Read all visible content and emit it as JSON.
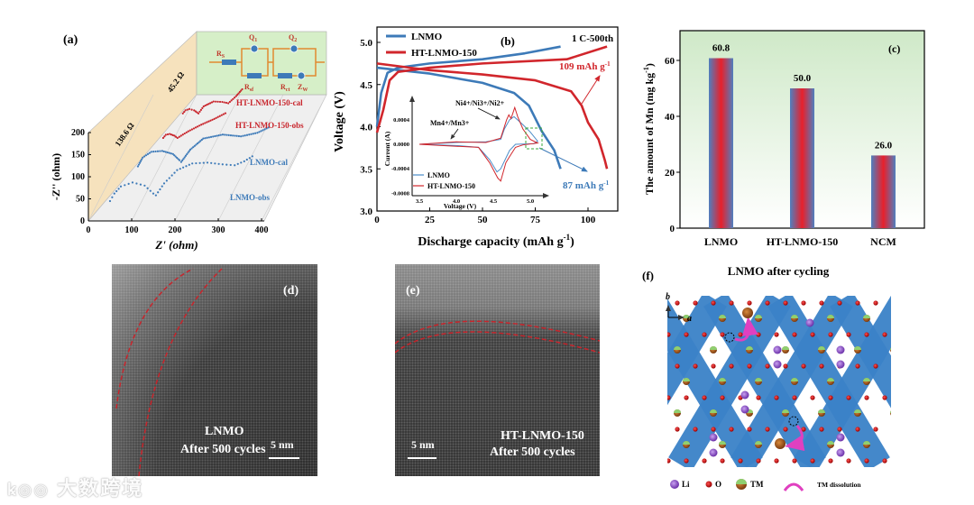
{
  "chart_data": [
    {
      "panel": "(a)",
      "type": "scatter",
      "title": "",
      "xlabel": "Z' (ohm)",
      "ylabel": "-Z'' (ohm)",
      "xlim": [
        0,
        400
      ],
      "ylim": [
        0,
        200
      ],
      "xticks": [
        "0",
        "100",
        "200",
        "300",
        "400"
      ],
      "yticks": [
        "0",
        "50",
        "100",
        "150",
        "200"
      ],
      "annotations": [
        "138.6 Ω",
        "45.2 Ω"
      ],
      "circuit": {
        "rs": {
          "main": "R",
          "sub": "S"
        },
        "q1": {
          "main": "Q",
          "sub": "1"
        },
        "rsf": {
          "main": "R",
          "sub": "sf"
        },
        "q2": {
          "main": "Q",
          "sub": "2"
        },
        "rct": {
          "main": "R",
          "sub": "ct"
        },
        "zw": {
          "main": "Z",
          "sub": "W"
        }
      },
      "series": [
        {
          "name": "LNMO-obs",
          "color": "#3d7ab8",
          "depth": 0,
          "points": [
            [
              50,
              45
            ],
            [
              60,
              62
            ],
            [
              75,
              78
            ],
            [
              102,
              87
            ],
            [
              130,
              80
            ],
            [
              150,
              62
            ],
            [
              156,
              58
            ],
            [
              175,
              85
            ],
            [
              205,
              115
            ],
            [
              240,
              130
            ],
            [
              275,
              132
            ],
            [
              310,
              128
            ],
            [
              338,
              126
            ],
            [
              360,
              135
            ],
            [
              385,
              150
            ]
          ]
        },
        {
          "name": "LNMO-cal",
          "color": "#3d7ab8",
          "depth": 1,
          "points": [
            [
              54,
              52
            ],
            [
              65,
              72
            ],
            [
              85,
              85
            ],
            [
              110,
              87
            ],
            [
              135,
              80
            ],
            [
              150,
              66
            ],
            [
              154,
              62
            ],
            [
              175,
              90
            ],
            [
              205,
              115
            ],
            [
              250,
              124
            ],
            [
              292,
              120
            ],
            [
              330,
              128
            ],
            [
              360,
              142
            ]
          ]
        },
        {
          "name": "HT-LNMO-150-obs",
          "color": "#c8242b",
          "depth": 2,
          "points": [
            [
              52,
              45
            ],
            [
              58,
              52
            ],
            [
              67,
              54
            ],
            [
              78,
              50
            ],
            [
              85,
              45
            ],
            [
              110,
              60
            ],
            [
              140,
              75
            ],
            [
              170,
              88
            ],
            [
              200,
              103
            ]
          ]
        },
        {
          "name": "HT-LNMO-150-cal",
          "color": "#c8242b",
          "depth": 3,
          "points": [
            [
              37,
              29
            ],
            [
              43,
              36
            ],
            [
              52,
              39
            ],
            [
              63,
              36
            ],
            [
              73,
              29
            ],
            [
              85,
              45
            ],
            [
              108,
              56
            ],
            [
              128,
              55
            ],
            [
              142,
              52
            ],
            [
              160,
              68
            ],
            [
              177,
              87
            ]
          ]
        }
      ]
    },
    {
      "panel": "(b)",
      "type": "line",
      "title": "1 C-500th",
      "xlabel": "Discharge capacity (mAh g",
      "xlabel_sup": "-1",
      "xlabel_end": ")",
      "ylabel": "Voltage (V)",
      "xlim": [
        0,
        112
      ],
      "ylim": [
        3.0,
        5.2
      ],
      "xticks": [
        "0",
        "25",
        "50",
        "75",
        "100"
      ],
      "yticks": [
        "3.0",
        "3.5",
        "4.0",
        "4.5",
        "5.0"
      ],
      "legend": [
        "LNMO",
        "HT-LNMO-150"
      ],
      "legend_position": "top-left",
      "annotations": {
        "ht_capacity": "109 mAh g",
        "lnmo_capacity": "87 mAh g",
        "sup": "-1"
      },
      "series": [
        {
          "name": "LNMO charge",
          "color": "#3d7ab8",
          "points": [
            [
              0,
              4.0
            ],
            [
              2,
              4.4
            ],
            [
              5,
              4.64
            ],
            [
              10,
              4.7
            ],
            [
              25,
              4.75
            ],
            [
              50,
              4.8
            ],
            [
              70,
              4.87
            ],
            [
              87,
              4.95
            ]
          ]
        },
        {
          "name": "LNMO discharge",
          "color": "#3d7ab8",
          "points": [
            [
              0,
              4.7
            ],
            [
              25,
              4.63
            ],
            [
              50,
              4.52
            ],
            [
              65,
              4.4
            ],
            [
              72,
              4.25
            ],
            [
              78,
              3.95
            ],
            [
              84,
              3.72
            ],
            [
              87,
              3.5
            ]
          ]
        },
        {
          "name": "HT-LNMO-150 charge",
          "color": "#d1262c",
          "points": [
            [
              0,
              3.93
            ],
            [
              3,
              4.2
            ],
            [
              6,
              4.55
            ],
            [
              10,
              4.65
            ],
            [
              25,
              4.7
            ],
            [
              50,
              4.75
            ],
            [
              90,
              4.8
            ],
            [
              109,
              4.95
            ]
          ]
        },
        {
          "name": "HT-LNMO-150 discharge",
          "color": "#d1262c",
          "points": [
            [
              0,
              4.75
            ],
            [
              25,
              4.67
            ],
            [
              50,
              4.62
            ],
            [
              75,
              4.55
            ],
            [
              92,
              4.42
            ],
            [
              97,
              4.25
            ],
            [
              100,
              4.05
            ],
            [
              105,
              3.85
            ],
            [
              108,
              3.6
            ],
            [
              109,
              3.5
            ]
          ]
        }
      ],
      "inset": {
        "type": "line",
        "xlabel": "Voltage (V)",
        "ylabel": "Current (A)",
        "xlim": [
          3.45,
          5.25
        ],
        "ylim": [
          -0.0008,
          0.0007
        ],
        "xticks": [
          "3.5",
          "4.0",
          "4.5",
          "5.0"
        ],
        "yticks": [
          "0.0004",
          "0.0000",
          "-0.0004",
          "-0.0008"
        ],
        "legend": [
          "LNMO",
          "HT-LNMO-150"
        ],
        "annotations": {
          "ni": "Ni",
          "ni_rest": "4+/Ni3+/Ni2+",
          "mn": "Mn4+/Mn3+"
        },
        "series": [
          {
            "name": "LNMO",
            "color": "#4a8cc8",
            "points": [
              [
                3.5,
                0
              ],
              [
                4.0,
                3e-05
              ],
              [
                4.4,
                4e-05
              ],
              [
                4.6,
                8e-05
              ],
              [
                4.65,
                0.00025
              ],
              [
                4.72,
                0.0004
              ],
              [
                4.78,
                0.00045
              ],
              [
                4.9,
                0.00032
              ],
              [
                5.0,
                0.0002
              ],
              [
                5.1,
                5e-05
              ],
              [
                5.05,
                1e-05
              ],
              [
                4.8,
                0.0
              ],
              [
                4.72,
                -0.0001
              ],
              [
                4.6,
                -0.0004
              ],
              [
                4.55,
                -0.00045
              ],
              [
                4.45,
                -0.00025
              ],
              [
                4.3,
                -5e-05
              ],
              [
                4.0,
                -2e-05
              ],
              [
                3.5,
                0
              ]
            ]
          },
          {
            "name": "HT-LNMO-150",
            "color": "#d1262c",
            "points": [
              [
                3.5,
                0
              ],
              [
                4.0,
                4e-05
              ],
              [
                4.4,
                3e-05
              ],
              [
                4.6,
                0.0001
              ],
              [
                4.68,
                0.0004
              ],
              [
                4.71,
                0.00048
              ],
              [
                4.74,
                0.00042
              ],
              [
                4.79,
                0.0006
              ],
              [
                4.83,
                0.00045
              ],
              [
                4.9,
                0.00025
              ],
              [
                5.0,
                8e-05
              ],
              [
                5.1,
                2e-05
              ],
              [
                4.9,
                -1e-05
              ],
              [
                4.8,
                -5e-05
              ],
              [
                4.72,
                -0.0002
              ],
              [
                4.67,
                -0.0003
              ],
              [
                4.6,
                -0.0006
              ],
              [
                4.56,
                -0.00055
              ],
              [
                4.45,
                -0.0003
              ],
              [
                4.3,
                -5e-05
              ],
              [
                3.8,
                -2e-05
              ],
              [
                3.5,
                0
              ]
            ]
          }
        ]
      }
    },
    {
      "panel": "(c)",
      "type": "bar",
      "title": "",
      "categories": [
        "LNMO",
        "HT-LNMO-150",
        "NCM"
      ],
      "values": [
        60.8,
        50.0,
        26.0
      ],
      "value_labels": [
        "60.8",
        "50.0",
        "26.0"
      ],
      "xlabel": "",
      "ylabel": "The amount of Mn (mg kg",
      "ylabel_sup": "-1",
      "ylabel_end": ")",
      "ylim": [
        0,
        70
      ],
      "yticks": [
        "0",
        "20",
        "40",
        "60"
      ]
    }
  ],
  "panels": {
    "d": {
      "label": "(d)",
      "line1": "LNMO",
      "line2": "After 500 cycles",
      "scale": "5 nm"
    },
    "e": {
      "label": "(e)",
      "line1": "HT-LNMO-150",
      "line2": "After 500 cycles",
      "scale": "5 nm"
    },
    "f": {
      "label": "(f)",
      "title": "LNMO after cycling",
      "axis_b": "b",
      "axis_a": "a",
      "legend": {
        "li": "Li",
        "o": "O",
        "tm": "TM",
        "dissolution": "TM dissolution"
      }
    }
  },
  "watermark": "大数跨境",
  "colors": {
    "blue": "#3d7ab8",
    "red": "#d1262c",
    "green_bg": "#d8efcf",
    "wall": "#f7e3bf",
    "lattice": "#3b82c8"
  }
}
